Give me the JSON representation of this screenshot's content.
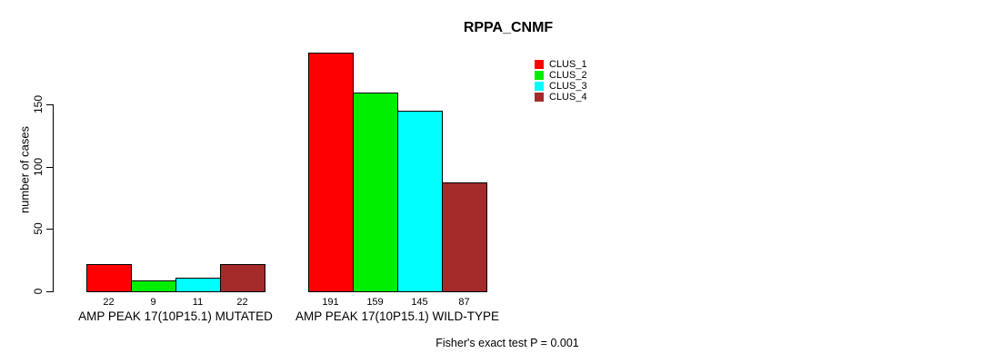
{
  "chart_data": {
    "type": "bar",
    "title": "RPPA_CNMF",
    "ylabel": "number of cases",
    "yticks": [
      0,
      50,
      100,
      150
    ],
    "ylim": [
      0,
      191
    ],
    "grid": false,
    "legend_position": "top-right",
    "categories": [
      "AMP PEAK 17(10P15.1) MUTATED",
      "AMP PEAK 17(10P15.1) WILD-TYPE"
    ],
    "series": [
      {
        "name": "CLUS_1",
        "color": "#ff0000",
        "values": [
          22,
          191
        ]
      },
      {
        "name": "CLUS_2",
        "color": "#00ee00",
        "values": [
          9,
          159
        ]
      },
      {
        "name": "CLUS_3",
        "color": "#00ffff",
        "values": [
          11,
          145
        ]
      },
      {
        "name": "CLUS_4",
        "color": "#a52a2a",
        "values": [
          22,
          87
        ]
      }
    ],
    "groups": [
      {
        "label": "AMP PEAK 17(10P15.1) MUTATED",
        "values": [
          22,
          9,
          11,
          22
        ]
      },
      {
        "label": "AMP PEAK 17(10P15.1) WILD-TYPE",
        "values": [
          191,
          159,
          145,
          87
        ]
      }
    ],
    "legend": [
      {
        "label": "CLUS_1",
        "color": "#ff0000"
      },
      {
        "label": "CLUS_2",
        "color": "#00ee00"
      },
      {
        "label": "CLUS_3",
        "color": "#00ffff"
      },
      {
        "label": "CLUS_4",
        "color": "#a52a2a"
      }
    ],
    "footnote": "Fisher's exact test P = 0.001"
  }
}
